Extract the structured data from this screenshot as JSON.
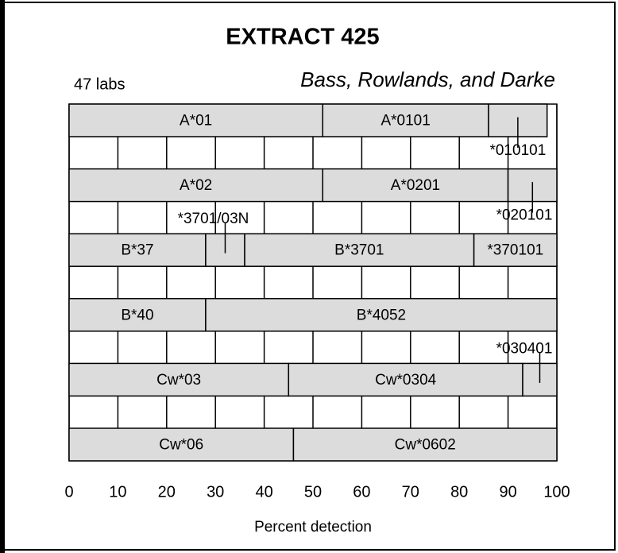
{
  "chart_data": {
    "type": "stacked-bar-horizontal",
    "title": "EXTRACT 425",
    "subtitle": "Bass, Rowlands, and Darke",
    "annotation": "47 labs",
    "xlabel": "Percent detection",
    "xlim": [
      0,
      100
    ],
    "xticks": [
      0,
      10,
      20,
      30,
      40,
      50,
      60,
      70,
      80,
      90,
      100
    ],
    "grid": true,
    "bar_color": "#dcdcdc",
    "rows": [
      {
        "segments": [
          {
            "label": "A*01",
            "value": 52
          },
          {
            "label": "A*0101",
            "value": 34
          },
          {
            "label": "*010101",
            "value": 12
          }
        ]
      },
      {
        "segments": [
          {
            "label": "A*02",
            "value": 52
          },
          {
            "label": "A*0201",
            "value": 38
          },
          {
            "label": "*020101",
            "value": 10
          }
        ]
      },
      {
        "segments": [
          {
            "label": "B*37",
            "value": 28
          },
          {
            "label": "*3701/03N",
            "value": 8
          },
          {
            "label": "B*3701",
            "value": 47
          },
          {
            "label": "*370101",
            "value": 17
          }
        ]
      },
      {
        "segments": [
          {
            "label": "B*40",
            "value": 28
          },
          {
            "label": "B*4052",
            "value": 72
          }
        ]
      },
      {
        "segments": [
          {
            "label": "Cw*03",
            "value": 45
          },
          {
            "label": "Cw*0304",
            "value": 48
          },
          {
            "label": "*030401",
            "value": 7
          }
        ]
      },
      {
        "segments": [
          {
            "label": "Cw*06",
            "value": 46
          },
          {
            "label": "Cw*0602",
            "value": 54
          }
        ]
      }
    ]
  }
}
